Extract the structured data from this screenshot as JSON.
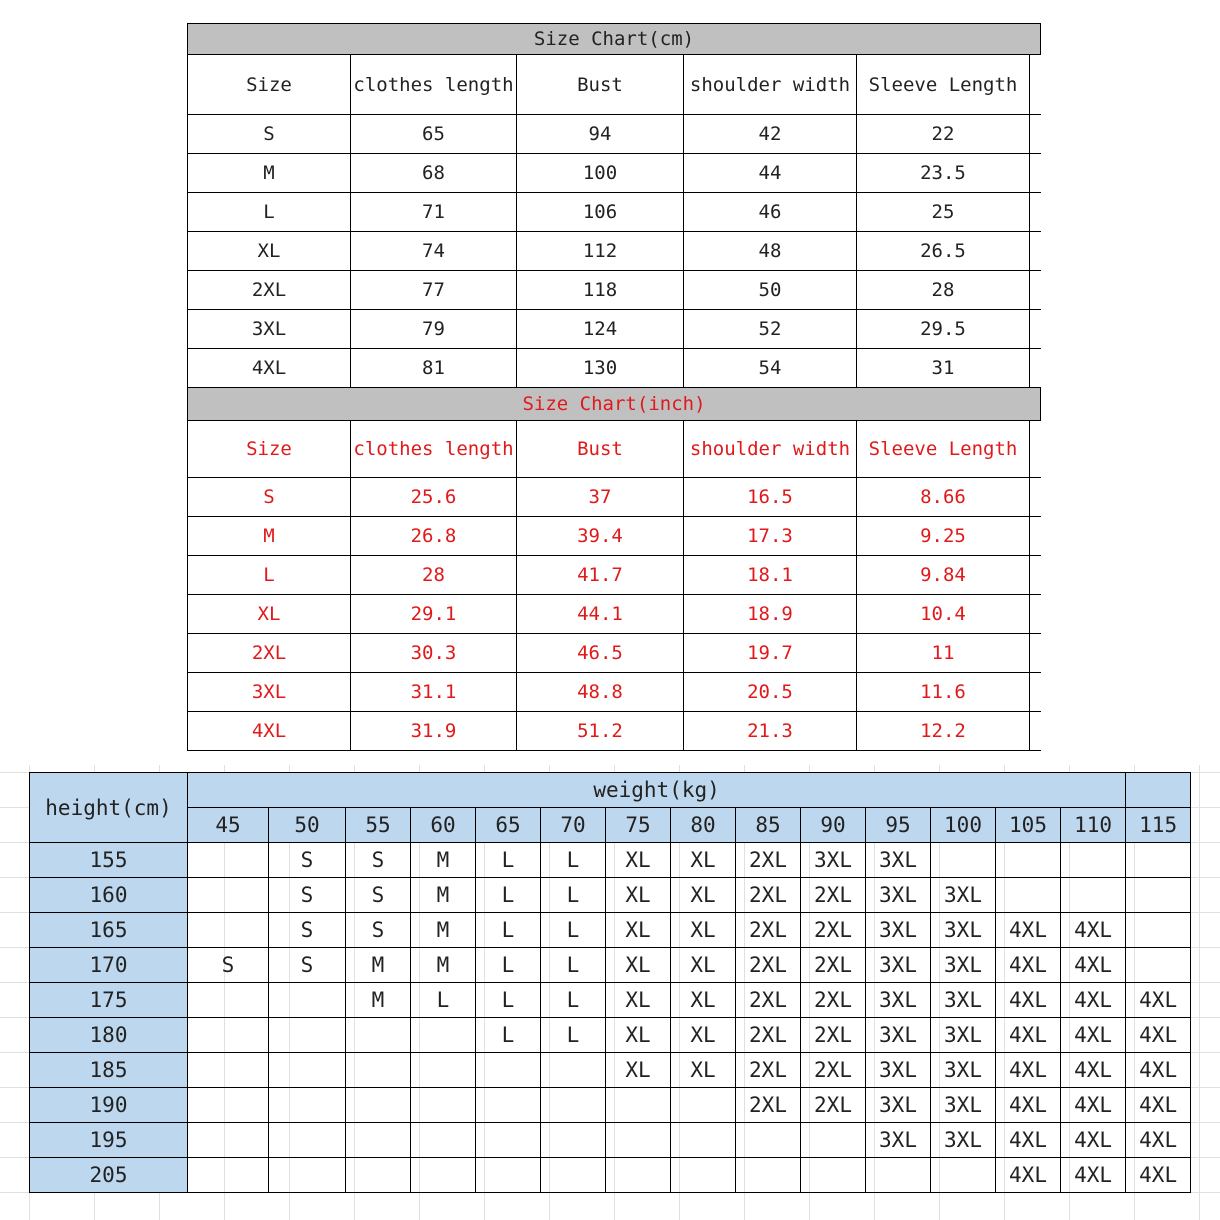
{
  "cm_chart": {
    "title": "Size Chart(cm)",
    "headers": [
      "Size",
      "clothes length",
      "Bust",
      "shoulder width",
      "Sleeve Length"
    ],
    "rows": [
      [
        "S",
        "65",
        "94",
        "42",
        "22"
      ],
      [
        "M",
        "68",
        "100",
        "44",
        "23.5"
      ],
      [
        "L",
        "71",
        "106",
        "46",
        "25"
      ],
      [
        "XL",
        "74",
        "112",
        "48",
        "26.5"
      ],
      [
        "2XL",
        "77",
        "118",
        "50",
        "28"
      ],
      [
        "3XL",
        "79",
        "124",
        "52",
        "29.5"
      ],
      [
        "4XL",
        "81",
        "130",
        "54",
        "31"
      ]
    ]
  },
  "inch_chart": {
    "title": "Size Chart(inch)",
    "text_color": "#e0191b",
    "headers": [
      "Size",
      "clothes length",
      "Bust",
      "shoulder width",
      "Sleeve Length"
    ],
    "rows": [
      [
        "S",
        "25.6",
        "37",
        "16.5",
        "8.66"
      ],
      [
        "M",
        "26.8",
        "39.4",
        "17.3",
        "9.25"
      ],
      [
        "L",
        "28",
        "41.7",
        "18.1",
        "9.84"
      ],
      [
        "XL",
        "29.1",
        "44.1",
        "18.9",
        "10.4"
      ],
      [
        "2XL",
        "30.3",
        "46.5",
        "19.7",
        "11"
      ],
      [
        "3XL",
        "31.1",
        "48.8",
        "20.5",
        "11.6"
      ],
      [
        "4XL",
        "31.9",
        "51.2",
        "21.3",
        "12.2"
      ]
    ]
  },
  "recommend": {
    "height_label": "height(cm)",
    "weight_label": "weight(kg)",
    "header_color": "#bdd7ee",
    "weights": [
      "45",
      "50",
      "55",
      "60",
      "65",
      "70",
      "75",
      "80",
      "85",
      "90",
      "95",
      "100",
      "105",
      "110",
      "115"
    ],
    "rows": [
      {
        "height": "155",
        "sizes": [
          "",
          "S",
          "S",
          "M",
          "L",
          "L",
          "XL",
          "XL",
          "2XL",
          "3XL",
          "3XL",
          "",
          "",
          "",
          ""
        ]
      },
      {
        "height": "160",
        "sizes": [
          "",
          "S",
          "S",
          "M",
          "L",
          "L",
          "XL",
          "XL",
          "2XL",
          "2XL",
          "3XL",
          "3XL",
          "",
          "",
          ""
        ]
      },
      {
        "height": "165",
        "sizes": [
          "",
          "S",
          "S",
          "M",
          "L",
          "L",
          "XL",
          "XL",
          "2XL",
          "2XL",
          "3XL",
          "3XL",
          "4XL",
          "4XL",
          ""
        ]
      },
      {
        "height": "170",
        "sizes": [
          "S",
          "S",
          "M",
          "M",
          "L",
          "L",
          "XL",
          "XL",
          "2XL",
          "2XL",
          "3XL",
          "3XL",
          "4XL",
          "4XL",
          ""
        ]
      },
      {
        "height": "175",
        "sizes": [
          "",
          "",
          "M",
          "L",
          "L",
          "L",
          "XL",
          "XL",
          "2XL",
          "2XL",
          "3XL",
          "3XL",
          "4XL",
          "4XL",
          "4XL"
        ]
      },
      {
        "height": "180",
        "sizes": [
          "",
          "",
          "",
          "",
          "L",
          "L",
          "XL",
          "XL",
          "2XL",
          "2XL",
          "3XL",
          "3XL",
          "4XL",
          "4XL",
          "4XL"
        ]
      },
      {
        "height": "185",
        "sizes": [
          "",
          "",
          "",
          "",
          "",
          "",
          "XL",
          "XL",
          "2XL",
          "2XL",
          "3XL",
          "3XL",
          "4XL",
          "4XL",
          "4XL"
        ]
      },
      {
        "height": "190",
        "sizes": [
          "",
          "",
          "",
          "",
          "",
          "",
          "",
          "",
          "2XL",
          "2XL",
          "3XL",
          "3XL",
          "4XL",
          "4XL",
          "4XL"
        ]
      },
      {
        "height": "195",
        "sizes": [
          "",
          "",
          "",
          "",
          "",
          "",
          "",
          "",
          "",
          "",
          "3XL",
          "3XL",
          "4XL",
          "4XL",
          "4XL"
        ]
      },
      {
        "height": "205",
        "sizes": [
          "",
          "",
          "",
          "",
          "",
          "",
          "",
          "",
          "",
          "",
          "",
          "",
          "4XL",
          "4XL",
          "4XL"
        ]
      }
    ]
  }
}
